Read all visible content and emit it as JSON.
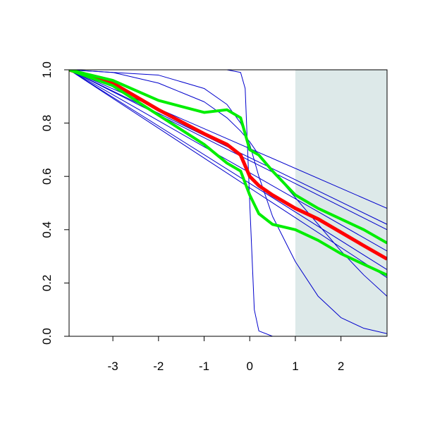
{
  "chart_data": {
    "type": "line",
    "xlim": [
      -3.96,
      3.01
    ],
    "ylim": [
      0,
      1
    ],
    "xticks": [
      -3,
      -2,
      -1,
      0,
      1,
      2
    ],
    "yticks": [
      {
        "value": 0,
        "label": "0.0"
      },
      {
        "value": 0.2,
        "label": "0.2"
      },
      {
        "value": 0.4,
        "label": "0.4"
      },
      {
        "value": 0.6,
        "label": "0.6"
      },
      {
        "value": 0.8,
        "label": "0.8"
      },
      {
        "value": 1,
        "label": "1.0"
      }
    ],
    "shade_from": 1,
    "shade_color": "#dde9e9",
    "series": [
      {
        "color": "#0000cc",
        "width": 1,
        "x": [
          -3.96,
          -3,
          -2,
          -1,
          -0.5,
          -0.2,
          -0.1,
          0,
          0.1,
          0.2,
          0.5,
          1,
          1.5,
          2,
          2.5,
          3.01
        ],
        "values": [
          1,
          1,
          1,
          1,
          1,
          0.99,
          0.93,
          0.5,
          0.1,
          0.02,
          0,
          0,
          0,
          0,
          0,
          0
        ]
      },
      {
        "color": "#0000cc",
        "width": 1,
        "x": [
          -3.96,
          -3,
          -2,
          -1,
          -0.5,
          -0.2,
          0,
          0.2,
          0.5,
          1,
          1.5,
          2,
          2.5,
          3.01
        ],
        "values": [
          1,
          0.99,
          0.98,
          0.93,
          0.87,
          0.8,
          0.72,
          0.6,
          0.45,
          0.28,
          0.15,
          0.07,
          0.03,
          0.01
        ]
      },
      {
        "color": "#0000cc",
        "width": 1,
        "x": [
          -3.96,
          -3,
          -2,
          -1,
          -0.5,
          -0.2,
          0,
          0.2,
          0.5,
          1,
          1.5,
          2,
          2.5,
          3.01
        ],
        "values": [
          1,
          0.99,
          0.95,
          0.88,
          0.82,
          0.77,
          0.73,
          0.68,
          0.62,
          0.52,
          0.42,
          0.32,
          0.23,
          0.15
        ]
      },
      {
        "color": "#0000cc",
        "width": 1,
        "x": [
          -3.96,
          3.01
        ],
        "values": [
          1,
          0.48
        ]
      },
      {
        "color": "#0000cc",
        "width": 1,
        "x": [
          -3.96,
          3.01
        ],
        "values": [
          1,
          0.42
        ]
      },
      {
        "color": "#0000cc",
        "width": 1,
        "x": [
          -3.96,
          3.01
        ],
        "values": [
          1,
          0.4
        ]
      },
      {
        "color": "#0000cc",
        "width": 1,
        "x": [
          -3.96,
          3.01
        ],
        "values": [
          1,
          0.32
        ]
      },
      {
        "color": "#0000cc",
        "width": 1,
        "x": [
          -3.96,
          3.01
        ],
        "values": [
          1,
          0.25
        ]
      },
      {
        "color": "#0000cc",
        "width": 1,
        "x": [
          -3.96,
          3.01
        ],
        "values": [
          1,
          0.22
        ]
      },
      {
        "color": "#ff0000",
        "width": 5,
        "x": [
          -3.96,
          -3,
          -2,
          -1,
          -0.5,
          -0.2,
          0,
          0.2,
          0.5,
          1,
          1.5,
          2,
          2.5,
          3.01
        ],
        "values": [
          1,
          0.95,
          0.85,
          0.76,
          0.72,
          0.68,
          0.6,
          0.565,
          0.53,
          0.48,
          0.44,
          0.39,
          0.34,
          0.29
        ]
      },
      {
        "color": "#00ee00",
        "width": 4,
        "x": [
          -3.96,
          -3,
          -2,
          -1,
          -0.5,
          -0.2,
          0,
          0.2,
          0.5,
          1,
          1.5,
          2,
          2.5,
          3.01
        ],
        "values": [
          1,
          0.96,
          0.885,
          0.84,
          0.85,
          0.82,
          0.7,
          0.68,
          0.62,
          0.53,
          0.48,
          0.44,
          0.4,
          0.35
        ]
      },
      {
        "color": "#00ee00",
        "width": 4,
        "x": [
          -3.96,
          -3,
          -2,
          -1,
          -0.5,
          -0.2,
          0,
          0.2,
          0.5,
          1,
          1.5,
          2,
          2.5,
          3.01
        ],
        "values": [
          1,
          0.94,
          0.83,
          0.72,
          0.65,
          0.62,
          0.53,
          0.46,
          0.42,
          0.4,
          0.36,
          0.31,
          0.27,
          0.23
        ]
      }
    ]
  }
}
